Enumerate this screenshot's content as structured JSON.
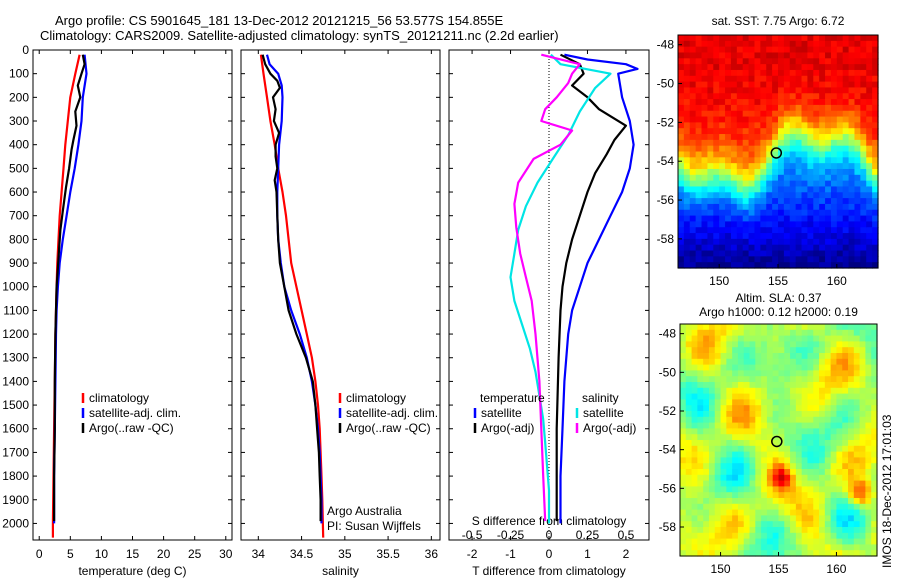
{
  "header": {
    "line1": "Argo profile: CS 5901645_181 13-Dec-2012 20121215_56 53.577S 154.855E",
    "line2": "Climatology: CARS2009. Satellite-adjusted climatology: synTS_20121211.nc (2.2d earlier)"
  },
  "stamp": "IMOS 18-Dec-2012 17:01:03",
  "colors": {
    "climatology": "#ff0000",
    "satellite": "#0000ff",
    "argo": "#000000",
    "sat_salt": "#00e5e5",
    "argo_salt": "#ff00ff"
  },
  "chart_data": [
    {
      "type": "line",
      "id": "temperature",
      "xlabel": "temperature (deg C)",
      "xlim": [
        -1,
        31
      ],
      "xticks": [
        0,
        5,
        10,
        15,
        20,
        25,
        30
      ],
      "ylim": [
        2070,
        0
      ],
      "yticks": [
        0,
        100,
        200,
        300,
        400,
        500,
        600,
        700,
        800,
        900,
        1000,
        1100,
        1200,
        1300,
        1400,
        1500,
        1600,
        1700,
        1800,
        1900,
        2000
      ],
      "legend": [
        "climatology",
        "satellite-adj. clim.",
        "Argo(..raw -QC)"
      ],
      "series": [
        {
          "name": "climatology",
          "color": "#ff0000",
          "points": [
            [
              6.5,
              20
            ],
            [
              5.8,
              100
            ],
            [
              5.0,
              200
            ],
            [
              4.6,
              300
            ],
            [
              4.2,
              400
            ],
            [
              3.9,
              500
            ],
            [
              3.6,
              600
            ],
            [
              3.3,
              700
            ],
            [
              3.1,
              800
            ],
            [
              2.9,
              900
            ],
            [
              2.8,
              1000
            ],
            [
              2.7,
              1100
            ],
            [
              2.6,
              1200
            ],
            [
              2.5,
              1400
            ],
            [
              2.4,
              1600
            ],
            [
              2.3,
              1800
            ],
            [
              2.2,
              2000
            ],
            [
              2.2,
              2060
            ]
          ]
        },
        {
          "name": "satellite-adj. clim.",
          "color": "#0000ff",
          "points": [
            [
              7.3,
              20
            ],
            [
              7.6,
              100
            ],
            [
              7.0,
              200
            ],
            [
              6.8,
              300
            ],
            [
              6.3,
              400
            ],
            [
              5.7,
              500
            ],
            [
              5.0,
              600
            ],
            [
              4.4,
              700
            ],
            [
              3.8,
              800
            ],
            [
              3.3,
              900
            ],
            [
              3.0,
              1000
            ],
            [
              2.8,
              1100
            ],
            [
              2.7,
              1200
            ],
            [
              2.6,
              1400
            ],
            [
              2.5,
              1600
            ],
            [
              2.4,
              1800
            ],
            [
              2.4,
              2000
            ]
          ]
        },
        {
          "name": "Argo(..raw -QC)",
          "color": "#000000",
          "points": [
            [
              7.0,
              20
            ],
            [
              7.3,
              60
            ],
            [
              6.8,
              100
            ],
            [
              6.2,
              150
            ],
            [
              6.6,
              200
            ],
            [
              5.8,
              260
            ],
            [
              6.0,
              320
            ],
            [
              5.5,
              380
            ],
            [
              5.2,
              420
            ],
            [
              4.8,
              500
            ],
            [
              4.3,
              580
            ],
            [
              3.8,
              680
            ],
            [
              3.4,
              760
            ],
            [
              3.2,
              840
            ],
            [
              3.0,
              920
            ],
            [
              2.8,
              1000
            ],
            [
              2.7,
              1100
            ],
            [
              2.6,
              1200
            ],
            [
              2.5,
              1400
            ],
            [
              2.5,
              1600
            ],
            [
              2.4,
              1800
            ],
            [
              2.4,
              1990
            ]
          ]
        }
      ]
    },
    {
      "type": "line",
      "id": "salinity",
      "xlabel": "salinity",
      "xlim": [
        33.8,
        36.1
      ],
      "xticks": [
        34,
        34.5,
        35,
        35.5,
        36
      ],
      "ylim": [
        2070,
        0
      ],
      "legend": [
        "climatology",
        "satellite-adj. clim.",
        "Argo(..raw -QC)"
      ],
      "annotation": [
        "Argo Australia",
        "PI: Susan Wijffels"
      ],
      "series": [
        {
          "name": "climatology",
          "color": "#ff0000",
          "points": [
            [
              34.03,
              20
            ],
            [
              34.06,
              100
            ],
            [
              34.1,
              200
            ],
            [
              34.14,
              300
            ],
            [
              34.19,
              400
            ],
            [
              34.23,
              500
            ],
            [
              34.28,
              600
            ],
            [
              34.32,
              700
            ],
            [
              34.35,
              800
            ],
            [
              34.38,
              900
            ],
            [
              34.44,
              1000
            ],
            [
              34.5,
              1100
            ],
            [
              34.56,
              1200
            ],
            [
              34.62,
              1300
            ],
            [
              34.66,
              1400
            ],
            [
              34.69,
              1500
            ],
            [
              34.71,
              1600
            ],
            [
              34.72,
              1700
            ],
            [
              34.73,
              1800
            ],
            [
              34.74,
              1900
            ],
            [
              34.75,
              2060
            ]
          ]
        },
        {
          "name": "satellite-adj. clim.",
          "color": "#0000ff",
          "points": [
            [
              34.1,
              20
            ],
            [
              34.13,
              60
            ],
            [
              34.23,
              100
            ],
            [
              34.27,
              150
            ],
            [
              34.28,
              200
            ],
            [
              34.27,
              300
            ],
            [
              34.24,
              400
            ],
            [
              34.23,
              500
            ],
            [
              34.22,
              600
            ],
            [
              34.22,
              700
            ],
            [
              34.23,
              800
            ],
            [
              34.26,
              900
            ],
            [
              34.3,
              1000
            ],
            [
              34.38,
              1100
            ],
            [
              34.48,
              1200
            ],
            [
              34.56,
              1300
            ],
            [
              34.62,
              1400
            ],
            [
              34.66,
              1500
            ],
            [
              34.69,
              1600
            ],
            [
              34.71,
              1700
            ],
            [
              34.72,
              1800
            ],
            [
              34.73,
              1900
            ],
            [
              34.73,
              2000
            ]
          ]
        },
        {
          "name": "Argo(..raw -QC)",
          "color": "#000000",
          "points": [
            [
              34.05,
              20
            ],
            [
              34.08,
              60
            ],
            [
              34.14,
              100
            ],
            [
              34.22,
              130
            ],
            [
              34.25,
              160
            ],
            [
              34.17,
              200
            ],
            [
              34.2,
              250
            ],
            [
              34.18,
              300
            ],
            [
              34.24,
              350
            ],
            [
              34.2,
              400
            ],
            [
              34.2,
              450
            ],
            [
              34.22,
              500
            ],
            [
              34.19,
              550
            ],
            [
              34.21,
              600
            ],
            [
              34.22,
              700
            ],
            [
              34.23,
              800
            ],
            [
              34.25,
              900
            ],
            [
              34.3,
              1000
            ],
            [
              34.35,
              1100
            ],
            [
              34.44,
              1200
            ],
            [
              34.55,
              1300
            ],
            [
              34.63,
              1400
            ],
            [
              34.66,
              1500
            ],
            [
              34.68,
              1600
            ],
            [
              34.7,
              1700
            ],
            [
              34.71,
              1800
            ],
            [
              34.72,
              1900
            ],
            [
              34.72,
              1990
            ]
          ]
        }
      ]
    },
    {
      "type": "line",
      "id": "difference",
      "xlabel": "T difference from climatology",
      "xlim": [
        -2.6,
        2.6
      ],
      "xticks": [
        -2,
        -1,
        0,
        1,
        2
      ],
      "top_xlabel": "S difference from climatology",
      "top_xticks": [
        "-0.5",
        "-0.25",
        "0",
        "0.25",
        "0.5"
      ],
      "ylim": [
        2070,
        0
      ],
      "legend_left": {
        "title": "temperature",
        "items": [
          "satellite",
          "Argo(-adj)"
        ]
      },
      "legend_right": {
        "title": "salinity",
        "items": [
          "satellite",
          "Argo(-adj)"
        ]
      },
      "series": [
        {
          "name": "temperature satellite",
          "color": "#0000ff",
          "points": [
            [
              0.4,
              20
            ],
            [
              1.0,
              40
            ],
            [
              2.0,
              60
            ],
            [
              2.3,
              80
            ],
            [
              1.8,
              100
            ],
            [
              1.9,
              200
            ],
            [
              2.1,
              300
            ],
            [
              2.2,
              400
            ],
            [
              2.1,
              500
            ],
            [
              1.9,
              600
            ],
            [
              1.6,
              700
            ],
            [
              1.3,
              800
            ],
            [
              1.0,
              900
            ],
            [
              0.8,
              1000
            ],
            [
              0.6,
              1100
            ],
            [
              0.5,
              1200
            ],
            [
              0.4,
              1400
            ],
            [
              0.35,
              1600
            ],
            [
              0.3,
              1800
            ],
            [
              0.3,
              2000
            ]
          ]
        },
        {
          "name": "temperature Argo(-adj)",
          "color": "#000000",
          "points": [
            [
              0.3,
              20
            ],
            [
              0.8,
              60
            ],
            [
              0.9,
              100
            ],
            [
              0.6,
              150
            ],
            [
              1.0,
              200
            ],
            [
              1.3,
              250
            ],
            [
              2.0,
              320
            ],
            [
              1.7,
              380
            ],
            [
              1.5,
              440
            ],
            [
              1.2,
              520
            ],
            [
              1.0,
              600
            ],
            [
              0.8,
              700
            ],
            [
              0.6,
              800
            ],
            [
              0.45,
              900
            ],
            [
              0.35,
              1000
            ],
            [
              0.3,
              1100
            ],
            [
              0.25,
              1300
            ],
            [
              0.2,
              1600
            ],
            [
              0.2,
              1800
            ],
            [
              0.2,
              1990
            ]
          ]
        },
        {
          "name": "salinity satellite",
          "color": "#00e5e5",
          "points": [
            [
              0.05,
              20
            ],
            [
              0.3,
              60
            ],
            [
              1.6,
              100
            ],
            [
              1.2,
              160
            ],
            [
              0.8,
              260
            ],
            [
              0.5,
              360
            ],
            [
              0.1,
              460
            ],
            [
              -0.3,
              560
            ],
            [
              -0.6,
              660
            ],
            [
              -0.8,
              760
            ],
            [
              -0.9,
              860
            ],
            [
              -1.0,
              960
            ],
            [
              -0.9,
              1060
            ],
            [
              -0.7,
              1160
            ],
            [
              -0.5,
              1260
            ],
            [
              -0.35,
              1360
            ],
            [
              -0.25,
              1460
            ],
            [
              -0.15,
              1560
            ],
            [
              -0.1,
              1660
            ],
            [
              -0.05,
              1760
            ],
            [
              0.0,
              1860
            ],
            [
              0.0,
              2000
            ]
          ]
        },
        {
          "name": "salinity Argo(-adj)",
          "color": "#ff00ff",
          "points": [
            [
              -0.2,
              20
            ],
            [
              0.8,
              60
            ],
            [
              0.6,
              100
            ],
            [
              0.5,
              140
            ],
            [
              0.2,
              200
            ],
            [
              -0.1,
              250
            ],
            [
              -0.2,
              300
            ],
            [
              0.6,
              340
            ],
            [
              0.3,
              400
            ],
            [
              -0.4,
              460
            ],
            [
              -0.8,
              560
            ],
            [
              -0.9,
              650
            ],
            [
              -0.85,
              750
            ],
            [
              -0.75,
              860
            ],
            [
              -0.6,
              960
            ],
            [
              -0.45,
              1060
            ],
            [
              -0.35,
              1200
            ],
            [
              -0.25,
              1400
            ],
            [
              -0.2,
              1600
            ],
            [
              -0.15,
              1800
            ],
            [
              -0.1,
              1990
            ]
          ]
        }
      ]
    },
    {
      "type": "heatmap",
      "id": "sst_map",
      "title": "sat. SST: 7.75 Argo: 6.72",
      "xlim": [
        146.5,
        163.5
      ],
      "ylim": [
        -59.5,
        -47.5
      ],
      "xticks": [
        150,
        155,
        160
      ],
      "yticks": [
        -48,
        -50,
        -52,
        -54,
        -56,
        -58
      ],
      "argo_position": [
        154.855,
        -53.577
      ]
    },
    {
      "type": "heatmap",
      "id": "sla_map",
      "title": [
        "Altim. SLA: 0.37",
        "Argo h1000: 0.12 h2000: 0.19"
      ],
      "xlim": [
        146.5,
        163.5
      ],
      "ylim": [
        -59.5,
        -47.5
      ],
      "xticks": [
        150,
        155,
        160
      ],
      "yticks": [
        -48,
        -50,
        -52,
        -54,
        -56,
        -58
      ],
      "argo_position": [
        154.855,
        -53.577
      ]
    }
  ]
}
